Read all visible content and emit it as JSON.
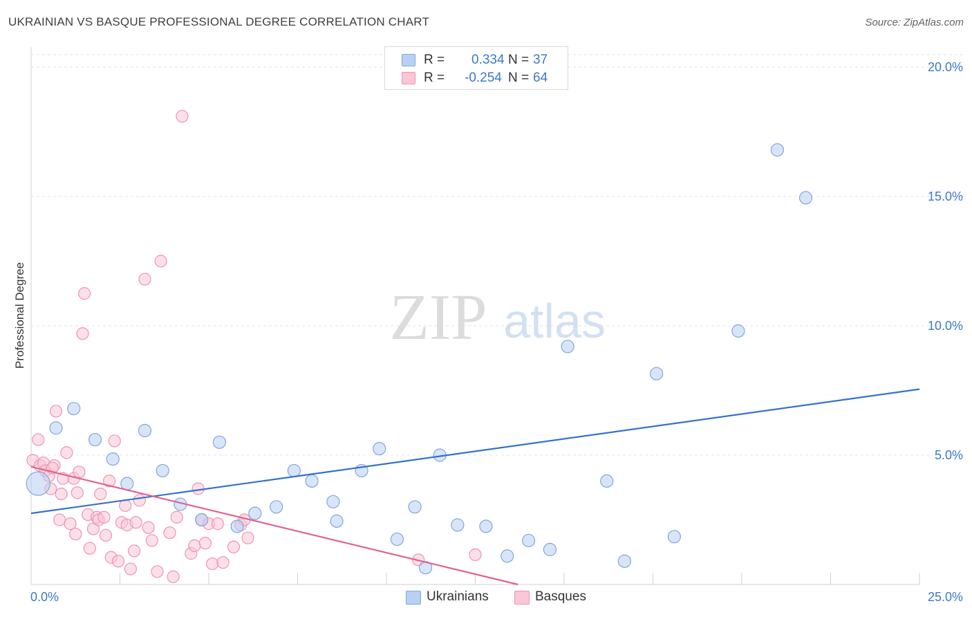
{
  "header": {
    "title": "UKRAINIAN VS BASQUE PROFESSIONAL DEGREE CORRELATION CHART",
    "source": "Source: ZipAtlas.com"
  },
  "watermark": {
    "zip": "ZIP",
    "atlas": "atlas"
  },
  "colors": {
    "ukrainian_fill": "#b8d0f2",
    "ukrainian_stroke": "#7ea6e0",
    "ukrainian_line": "#3371cc",
    "basque_fill": "#f9c6d6",
    "basque_stroke": "#ee93b2",
    "basque_line": "#e2628f",
    "tick_text": "#3b78c9",
    "grid": "#e3e3e3"
  },
  "legend": {
    "r_label": "R =",
    "n_label": "N =",
    "rows": [
      {
        "r": "0.334",
        "n": "37"
      },
      {
        "r": "-0.254",
        "n": "64"
      }
    ]
  },
  "chart_data": {
    "type": "scatter",
    "title": "UKRAINIAN VS BASQUE PROFESSIONAL DEGREE CORRELATION CHART",
    "xlabel": "",
    "ylabel": "Professional Degree",
    "xlim": [
      0,
      25
    ],
    "ylim": [
      0,
      20
    ],
    "x_tick_labels": [
      "0.0%",
      "25.0%"
    ],
    "y_ticks": [
      5,
      10,
      15,
      20
    ],
    "y_tick_labels": [
      "5.0%",
      "10.0%",
      "15.0%",
      "20.0%"
    ],
    "legend_position": "top-center",
    "series": [
      {
        "name": "Ukrainians",
        "r": 0.334,
        "n": 37,
        "trend": {
          "x": [
            0,
            25
          ],
          "y": [
            2.75,
            7.55
          ]
        },
        "points": [
          {
            "x": 0.2,
            "y": 3.9,
            "big": true
          },
          {
            "x": 0.7,
            "y": 6.05
          },
          {
            "x": 1.2,
            "y": 6.8
          },
          {
            "x": 1.8,
            "y": 5.6
          },
          {
            "x": 2.3,
            "y": 4.85
          },
          {
            "x": 2.7,
            "y": 3.9
          },
          {
            "x": 3.2,
            "y": 5.95
          },
          {
            "x": 3.7,
            "y": 4.4
          },
          {
            "x": 4.2,
            "y": 3.1
          },
          {
            "x": 4.8,
            "y": 2.5
          },
          {
            "x": 5.3,
            "y": 5.5
          },
          {
            "x": 5.8,
            "y": 2.25
          },
          {
            "x": 6.3,
            "y": 2.75
          },
          {
            "x": 6.9,
            "y": 3.0
          },
          {
            "x": 7.4,
            "y": 4.4
          },
          {
            "x": 7.9,
            "y": 4.0
          },
          {
            "x": 8.5,
            "y": 3.2
          },
          {
            "x": 8.6,
            "y": 2.45
          },
          {
            "x": 9.3,
            "y": 4.4
          },
          {
            "x": 9.8,
            "y": 5.25
          },
          {
            "x": 10.3,
            "y": 1.75
          },
          {
            "x": 10.8,
            "y": 3.0
          },
          {
            "x": 11.1,
            "y": 0.65
          },
          {
            "x": 11.5,
            "y": 5.0
          },
          {
            "x": 12.0,
            "y": 2.3
          },
          {
            "x": 12.8,
            "y": 2.25
          },
          {
            "x": 13.4,
            "y": 1.1
          },
          {
            "x": 14.0,
            "y": 1.7
          },
          {
            "x": 14.6,
            "y": 1.35
          },
          {
            "x": 15.1,
            "y": 9.2
          },
          {
            "x": 16.2,
            "y": 4.0
          },
          {
            "x": 16.7,
            "y": 0.9
          },
          {
            "x": 17.6,
            "y": 8.15
          },
          {
            "x": 18.1,
            "y": 1.85
          },
          {
            "x": 19.9,
            "y": 9.8
          },
          {
            "x": 21.0,
            "y": 16.8
          },
          {
            "x": 21.8,
            "y": 14.95
          }
        ]
      },
      {
        "name": "Basques",
        "r": -0.254,
        "n": 64,
        "trend": {
          "x": [
            0,
            13.7
          ],
          "y": [
            4.55,
            0
          ]
        },
        "points": [
          {
            "x": 0.05,
            "y": 4.8
          },
          {
            "x": 0.2,
            "y": 5.6
          },
          {
            "x": 0.25,
            "y": 4.6
          },
          {
            "x": 0.35,
            "y": 4.7
          },
          {
            "x": 0.4,
            "y": 4.4
          },
          {
            "x": 0.5,
            "y": 4.2
          },
          {
            "x": 0.55,
            "y": 3.7
          },
          {
            "x": 0.65,
            "y": 4.6
          },
          {
            "x": 0.7,
            "y": 6.7
          },
          {
            "x": 0.8,
            "y": 2.5
          },
          {
            "x": 0.85,
            "y": 3.5
          },
          {
            "x": 0.9,
            "y": 4.1
          },
          {
            "x": 1.0,
            "y": 5.1
          },
          {
            "x": 1.1,
            "y": 2.35
          },
          {
            "x": 1.2,
            "y": 4.1
          },
          {
            "x": 1.3,
            "y": 3.55
          },
          {
            "x": 1.35,
            "y": 4.35
          },
          {
            "x": 1.45,
            "y": 9.7
          },
          {
            "x": 1.5,
            "y": 11.25
          },
          {
            "x": 1.6,
            "y": 2.7
          },
          {
            "x": 1.65,
            "y": 1.4
          },
          {
            "x": 1.75,
            "y": 2.15
          },
          {
            "x": 1.85,
            "y": 2.6
          },
          {
            "x": 1.9,
            "y": 2.5
          },
          {
            "x": 1.95,
            "y": 3.5
          },
          {
            "x": 2.05,
            "y": 2.6
          },
          {
            "x": 2.1,
            "y": 1.9
          },
          {
            "x": 2.2,
            "y": 4.0
          },
          {
            "x": 2.25,
            "y": 1.05
          },
          {
            "x": 2.35,
            "y": 5.55
          },
          {
            "x": 2.45,
            "y": 0.9
          },
          {
            "x": 2.55,
            "y": 2.4
          },
          {
            "x": 2.65,
            "y": 3.05
          },
          {
            "x": 2.7,
            "y": 2.3
          },
          {
            "x": 2.8,
            "y": 0.6
          },
          {
            "x": 2.9,
            "y": 1.3
          },
          {
            "x": 2.95,
            "y": 2.4
          },
          {
            "x": 3.05,
            "y": 3.25
          },
          {
            "x": 3.2,
            "y": 11.8
          },
          {
            "x": 3.3,
            "y": 2.2
          },
          {
            "x": 3.55,
            "y": 0.5
          },
          {
            "x": 3.65,
            "y": 12.5
          },
          {
            "x": 3.9,
            "y": 2.0
          },
          {
            "x": 4.0,
            "y": 0.3
          },
          {
            "x": 4.25,
            "y": 18.1
          },
          {
            "x": 4.5,
            "y": 1.2
          },
          {
            "x": 4.6,
            "y": 1.5
          },
          {
            "x": 4.7,
            "y": 3.7
          },
          {
            "x": 4.8,
            "y": 2.5
          },
          {
            "x": 4.9,
            "y": 1.6
          },
          {
            "x": 5.0,
            "y": 2.35
          },
          {
            "x": 5.1,
            "y": 0.8
          },
          {
            "x": 5.25,
            "y": 2.35
          },
          {
            "x": 5.4,
            "y": 0.85
          },
          {
            "x": 5.7,
            "y": 1.45
          },
          {
            "x": 5.9,
            "y": 2.3
          },
          {
            "x": 6.0,
            "y": 2.5
          },
          {
            "x": 6.1,
            "y": 1.8
          },
          {
            "x": 10.9,
            "y": 0.95
          },
          {
            "x": 12.5,
            "y": 1.15
          },
          {
            "x": 4.1,
            "y": 2.6
          },
          {
            "x": 3.4,
            "y": 1.7
          },
          {
            "x": 1.25,
            "y": 1.95
          },
          {
            "x": 0.6,
            "y": 4.5
          }
        ]
      }
    ]
  }
}
